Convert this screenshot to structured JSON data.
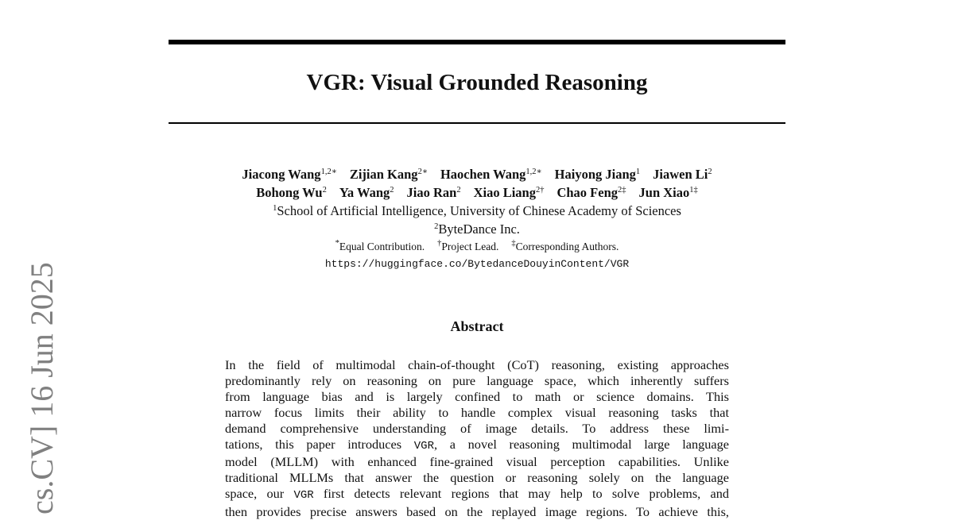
{
  "side_stamp": "cs.CV]  16 Jun 2025",
  "title": "VGR: Visual Grounded Reasoning",
  "authors_row1": [
    {
      "name": "Jiacong Wang",
      "sup": "1,2∗"
    },
    {
      "name": "Zijian Kang",
      "sup": "2∗"
    },
    {
      "name": "Haochen Wang",
      "sup": "1,2∗"
    },
    {
      "name": "Haiyong Jiang",
      "sup": "1"
    },
    {
      "name": "Jiawen Li",
      "sup": "2"
    }
  ],
  "authors_row2": [
    {
      "name": "Bohong Wu",
      "sup": "2"
    },
    {
      "name": "Ya Wang",
      "sup": "2"
    },
    {
      "name": "Jiao Ran",
      "sup": "2"
    },
    {
      "name": "Xiao Liang",
      "sup": "2†"
    },
    {
      "name": "Chao Feng",
      "sup": "2‡"
    },
    {
      "name": "Jun Xiao",
      "sup": "1‡"
    }
  ],
  "affiliations": [
    {
      "sup": "1",
      "text": "School of Artificial Intelligence, University of Chinese Academy of Sciences"
    },
    {
      "sup": "2",
      "text": "ByteDance Inc."
    }
  ],
  "notes": [
    {
      "sup": "*",
      "text": "Equal Contribution."
    },
    {
      "sup": "†",
      "text": "Project Lead."
    },
    {
      "sup": "‡",
      "text": "Corresponding Authors."
    }
  ],
  "url": "https://huggingface.co/BytedanceDouyinContent/VGR",
  "abstract_heading": "Abstract",
  "abstract_lines": [
    [
      "In the field of multimodal chain-of-thought (CoT) reasoning, existing approaches"
    ],
    [
      "predominantly rely on reasoning on pure language space, which inherently suffers"
    ],
    [
      "from language bias and is largely confined to math or science domains.  This"
    ],
    [
      "narrow focus limits their ability to handle complex visual reasoning tasks that"
    ],
    [
      "demand comprehensive understanding of image details.  To address these limi-"
    ],
    [
      "tations, this paper introduces ",
      "VGR",
      ", a novel reasoning multimodal large language"
    ],
    [
      "model (MLLM) with enhanced fine-grained visual perception capabilities. Unlike"
    ],
    [
      "traditional MLLMs that answer the question or reasoning solely on the language"
    ],
    [
      "space, our ",
      "VGR",
      " first detects relevant regions that may help to solve problems, and"
    ],
    [
      "then provides precise answers based on the replayed image regions. To achieve this,"
    ]
  ]
}
